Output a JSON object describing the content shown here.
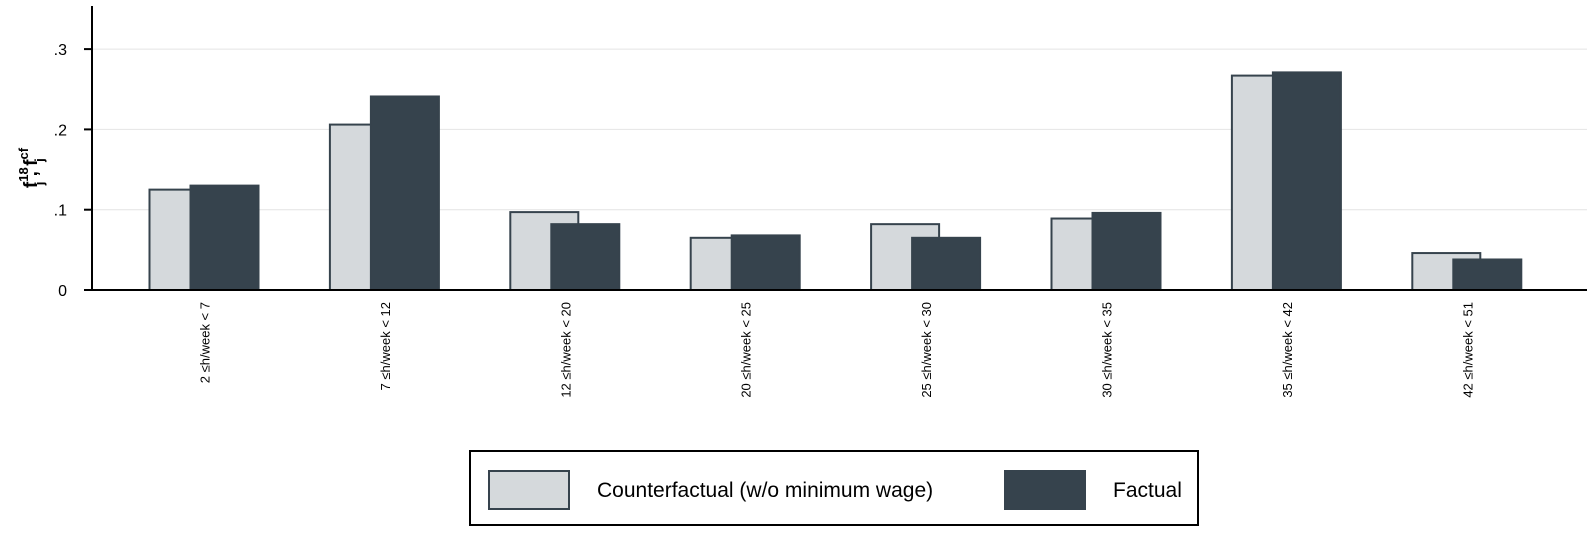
{
  "chart_data": {
    "type": "bar",
    "categories": [
      "2 ≤h/week < 7",
      "7 ≤h/week < 12",
      "12 ≤h/week < 20",
      "20 ≤h/week < 25",
      "25 ≤h/week < 30",
      "30 ≤h/week < 35",
      "35 ≤h/week < 42",
      "42 ≤h/week < 51"
    ],
    "series": [
      {
        "name": "Counterfactual (w/o minimum wage)",
        "color": "#d5d9dc",
        "values": [
          0.125,
          0.206,
          0.097,
          0.065,
          0.082,
          0.089,
          0.267,
          0.046
        ]
      },
      {
        "name": "Factual",
        "color": "#36434d",
        "values": [
          0.13,
          0.241,
          0.082,
          0.068,
          0.065,
          0.096,
          0.271,
          0.038
        ]
      }
    ],
    "ylabel": {
      "main": "f",
      "sup1": "18",
      "sub1": "j",
      "sep": " , ",
      "main2": "f",
      "sup2": "cf",
      "sub2": "j"
    },
    "yticks": [
      0,
      0.1,
      0.2,
      0.3
    ],
    "ytick_labels": [
      "0",
      ".1",
      ".2",
      ".3"
    ],
    "ylim": [
      0,
      0.35
    ],
    "grid": true,
    "legend_position": "bottom"
  }
}
